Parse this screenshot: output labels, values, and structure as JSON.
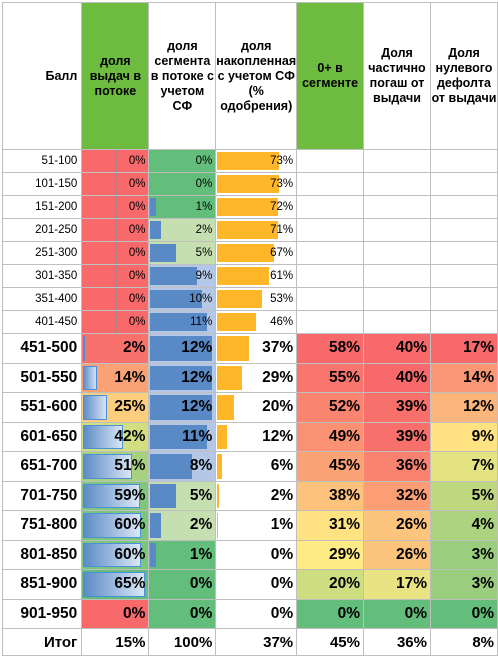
{
  "headers": {
    "ball": "Балл",
    "c1": "доля выдач в потоке",
    "c2": "доля сегмента в потоке с учетом СФ",
    "c3": "доля накопленная с учетом СФ (% одобрения)",
    "c4": "0+ в сегменте",
    "c5": "Доля частично погаш от выдачи",
    "c6": "Доля нулевого дефолта от выдачи"
  },
  "rows": [
    {
      "label": "51-100",
      "c1": "0%",
      "c2": "0%",
      "c3": "73%",
      "c4": "",
      "c5": "",
      "c6": ""
    },
    {
      "label": "101-150",
      "c1": "0%",
      "c2": "0%",
      "c3": "73%",
      "c4": "",
      "c5": "",
      "c6": ""
    },
    {
      "label": "151-200",
      "c1": "0%",
      "c2": "1%",
      "c3": "72%",
      "c4": "",
      "c5": "",
      "c6": ""
    },
    {
      "label": "201-250",
      "c1": "0%",
      "c2": "2%",
      "c3": "71%",
      "c4": "",
      "c5": "",
      "c6": ""
    },
    {
      "label": "251-300",
      "c1": "0%",
      "c2": "5%",
      "c3": "67%",
      "c4": "",
      "c5": "",
      "c6": ""
    },
    {
      "label": "301-350",
      "c1": "0%",
      "c2": "9%",
      "c3": "61%",
      "c4": "",
      "c5": "",
      "c6": ""
    },
    {
      "label": "351-400",
      "c1": "0%",
      "c2": "10%",
      "c3": "53%",
      "c4": "",
      "c5": "",
      "c6": ""
    },
    {
      "label": "401-450",
      "c1": "0%",
      "c2": "11%",
      "c3": "46%",
      "c4": "",
      "c5": "",
      "c6": ""
    },
    {
      "label": "451-500",
      "c1": "2%",
      "c2": "12%",
      "c3": "37%",
      "c4": "58%",
      "c5": "40%",
      "c6": "17%"
    },
    {
      "label": "501-550",
      "c1": "14%",
      "c2": "12%",
      "c3": "29%",
      "c4": "55%",
      "c5": "40%",
      "c6": "14%"
    },
    {
      "label": "551-600",
      "c1": "25%",
      "c2": "12%",
      "c3": "20%",
      "c4": "52%",
      "c5": "39%",
      "c6": "12%"
    },
    {
      "label": "601-650",
      "c1": "42%",
      "c2": "11%",
      "c3": "12%",
      "c4": "49%",
      "c5": "39%",
      "c6": "9%"
    },
    {
      "label": "651-700",
      "c1": "51%",
      "c2": "8%",
      "c3": "6%",
      "c4": "45%",
      "c5": "36%",
      "c6": "7%"
    },
    {
      "label": "701-750",
      "c1": "59%",
      "c2": "5%",
      "c3": "2%",
      "c4": "38%",
      "c5": "32%",
      "c6": "5%"
    },
    {
      "label": "751-800",
      "c1": "60%",
      "c2": "2%",
      "c3": "1%",
      "c4": "31%",
      "c5": "26%",
      "c6": "4%"
    },
    {
      "label": "801-850",
      "c1": "60%",
      "c2": "1%",
      "c3": "0%",
      "c4": "29%",
      "c5": "26%",
      "c6": "3%"
    },
    {
      "label": "851-900",
      "c1": "65%",
      "c2": "0%",
      "c3": "0%",
      "c4": "20%",
      "c5": "17%",
      "c6": "3%"
    },
    {
      "label": "901-950",
      "c1": "0%",
      "c2": "0%",
      "c3": "0%",
      "c4": "0%",
      "c5": "0%",
      "c6": "0%"
    }
  ],
  "total": {
    "label": "Итог",
    "c1": "15%",
    "c2": "100%",
    "c3": "37%",
    "c4": "45%",
    "c5": "36%",
    "c6": "8%"
  },
  "colors": {
    "header_green": "#6dbb3f",
    "red": "#f8696b",
    "green": "#63be7b",
    "yellow": "#ffeb84",
    "databar_blue": "#5a8ac6",
    "databar_orange": "#ffb628"
  }
}
